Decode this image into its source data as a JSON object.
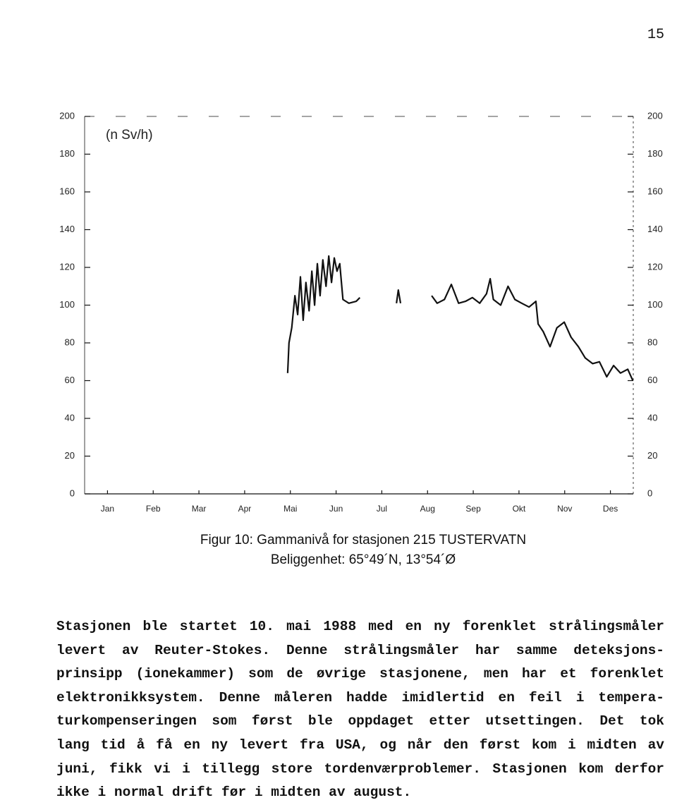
{
  "page_number": "15",
  "chart_data": {
    "type": "line",
    "y_label": "(n Sv/h)",
    "color": "#111111",
    "xlim": [
      0,
      12
    ],
    "xticks": [
      {
        "value": 0.5,
        "label": "Jan"
      },
      {
        "value": 1.5,
        "label": "Feb"
      },
      {
        "value": 2.5,
        "label": "Mar"
      },
      {
        "value": 3.5,
        "label": "Apr"
      },
      {
        "value": 4.5,
        "label": "Mai"
      },
      {
        "value": 5.5,
        "label": "Jun"
      },
      {
        "value": 6.5,
        "label": "Jul"
      },
      {
        "value": 7.5,
        "label": "Aug"
      },
      {
        "value": 8.5,
        "label": "Sep"
      },
      {
        "value": 9.5,
        "label": "Okt"
      },
      {
        "value": 10.5,
        "label": "Nov"
      },
      {
        "value": 11.5,
        "label": "Des"
      }
    ],
    "ylim": [
      0,
      200
    ],
    "yticks": [
      0,
      20,
      40,
      60,
      80,
      100,
      120,
      140,
      160,
      180,
      200
    ],
    "x": [
      4.44,
      4.47,
      4.53,
      4.6,
      4.66,
      4.72,
      4.78,
      4.84,
      4.91,
      4.97,
      5.03,
      5.09,
      5.15,
      5.21,
      5.28,
      5.34,
      5.4,
      5.46,
      5.52,
      5.58,
      5.65,
      5.78,
      5.94,
      6.02,
      null,
      6.82,
      6.86,
      6.91,
      null,
      7.59,
      7.71,
      7.87,
      8.02,
      8.18,
      8.33,
      8.48,
      8.64,
      8.79,
      8.87,
      8.94,
      9.1,
      9.26,
      9.41,
      9.56,
      9.72,
      9.87,
      9.92,
      10.03,
      10.18,
      10.33,
      10.49,
      10.64,
      10.8,
      10.95,
      11.11,
      11.26,
      11.42,
      11.57,
      11.72,
      11.88,
      11.99
    ],
    "values": [
      64,
      80,
      88,
      105,
      95,
      115,
      92,
      112,
      97,
      118,
      100,
      122,
      105,
      124,
      110,
      126,
      112,
      125,
      118,
      122,
      103,
      101,
      102,
      104,
      null,
      101,
      108,
      101,
      null,
      105,
      101,
      103,
      111,
      101,
      102,
      104,
      101,
      106,
      114,
      103,
      100,
      110,
      103,
      101,
      99,
      102,
      90,
      86,
      78,
      88,
      91,
      83,
      78,
      72,
      69,
      70,
      62,
      68,
      64,
      66,
      60
    ]
  },
  "caption": [
    "Figur 10: Gammanivå for stasjonen 215 TUSTERVATN",
    "Beliggenhet: 65°49´N, 13°54´Ø"
  ],
  "paragraph": [
    "Stasjonen ble startet 10. mai 1988 med en ny forenklet strålingsmåler",
    "levert av Reuter-Stokes. Denne strålingsmåler har samme deteksjons-",
    "prinsipp (ionekammer) som de øvrige stasjonene, men har et forenklet",
    "elektronikksystem. Denne måleren hadde imidlertid en feil i tempera-",
    "turkompenseringen som først ble oppdaget etter utsettingen. Det tok",
    "lang tid å få en ny levert fra USA, og når den først kom i midten av",
    "juni, fikk vi i tillegg store tordenværproblemer. Stasjonen kom derfor",
    "ikke i normal drift før i midten av august."
  ]
}
